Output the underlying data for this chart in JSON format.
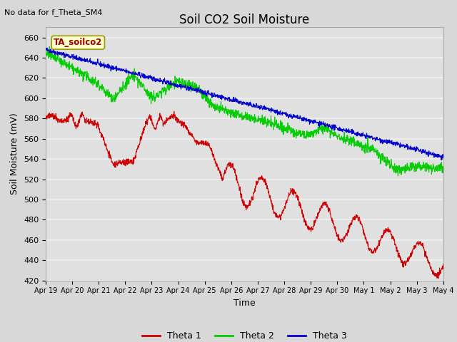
{
  "title": "Soil CO2 Soil Moisture",
  "subtitle": "No data for f_Theta_SM4",
  "ylabel": "Soil Moisture (mV)",
  "xlabel": "Time",
  "annotation": "TA_soilco2",
  "ylim": [
    420,
    670
  ],
  "yticks": [
    420,
    440,
    460,
    480,
    500,
    520,
    540,
    560,
    580,
    600,
    620,
    640,
    660
  ],
  "x_tick_labels": [
    "Apr 19",
    "Apr 20",
    "Apr 21",
    "Apr 22",
    "Apr 23",
    "Apr 24",
    "Apr 25",
    "Apr 26",
    "Apr 27",
    "Apr 28",
    "Apr 29",
    "Apr 30",
    "May 1",
    "May 2",
    "May 3",
    "May 4"
  ],
  "legend_labels": [
    "Theta 1",
    "Theta 2",
    "Theta 3"
  ],
  "legend_colors": [
    "#cc0000",
    "#00cc00",
    "#0000cc"
  ],
  "bg_color": "#d8d8d8",
  "plot_bg_color": "#e0e0e0",
  "grid_color": "#f0f0f0",
  "title_fontsize": 12,
  "axis_fontsize": 9,
  "tick_fontsize": 8
}
